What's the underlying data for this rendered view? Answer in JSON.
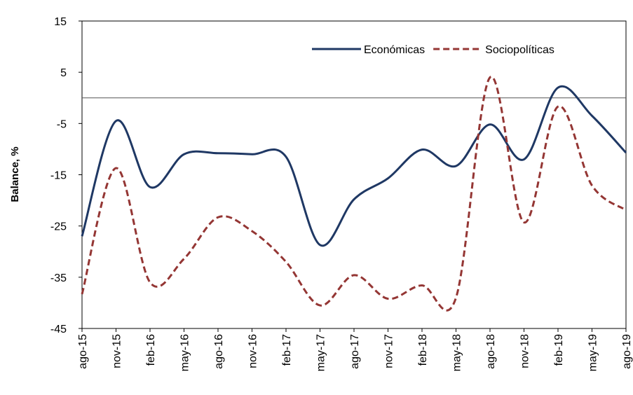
{
  "chart_data": {
    "type": "line",
    "y_label": "Balance, %",
    "categories": [
      "ago-15",
      "nov-15",
      "feb-16",
      "may-16",
      "ago-16",
      "nov-16",
      "feb-17",
      "may-17",
      "ago-17",
      "nov-17",
      "feb-18",
      "may-18",
      "ago-18",
      "nov-18",
      "feb-19",
      "may-19",
      "ago-19"
    ],
    "series": [
      {
        "name": "Económicas",
        "color": "#1f3864",
        "dash": false,
        "values": [
          -27,
          -4.5,
          -17.4,
          -11,
          -10.8,
          -11,
          -11.5,
          -28.7,
          -19.8,
          -15.7,
          -10.1,
          -13.3,
          -5.2,
          -12,
          2,
          -3.5,
          -10.7
        ]
      },
      {
        "name": "Sociopolíticas",
        "color": "#943634",
        "dash": true,
        "values": [
          -38.3,
          -13.7,
          -36,
          -31.4,
          -23.3,
          -26,
          -32,
          -40.5,
          -34.6,
          -39.2,
          -36.6,
          -39,
          4,
          -24.3,
          -1.7,
          -17.1,
          -21.9
        ]
      }
    ],
    "ylim": [
      -45,
      15
    ],
    "yticks": [
      -45,
      -35,
      -25,
      -15,
      -5,
      5,
      15
    ],
    "zero_line": true,
    "legend": "top-right",
    "smooth": true
  }
}
